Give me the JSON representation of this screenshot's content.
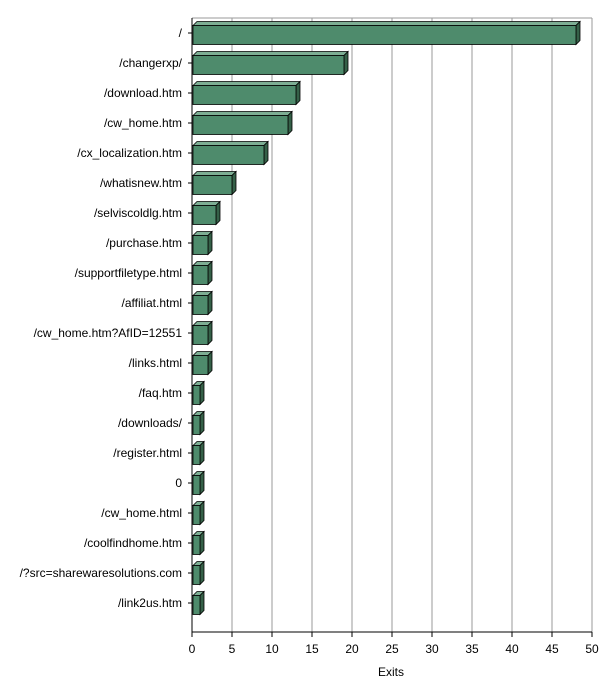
{
  "chart_data": {
    "type": "bar",
    "orientation": "horizontal",
    "style": "3d",
    "categories": [
      "/",
      "/changerxp/",
      "/download.htm",
      "/cw_home.htm",
      "/cx_localization.htm",
      "/whatisnew.htm",
      "/selviscoldlg.htm",
      "/purchase.htm",
      "/supportfiletype.html",
      "/affiliat.html",
      "/cw_home.htm?AfID=12551",
      "/links.html",
      "/faq.htm",
      "/downloads/",
      "/register.html",
      "0",
      "/cw_home.html",
      "/coolfindhome.htm",
      "/?src=sharewaresolutions.com",
      "/link2us.htm"
    ],
    "values": [
      48,
      19,
      13,
      12,
      9,
      5,
      3,
      2,
      2,
      2,
      2,
      2,
      1,
      1,
      1,
      1,
      1,
      1,
      1,
      1
    ],
    "xlabel": "Exits",
    "xlim": [
      0,
      50
    ],
    "xticks": [
      0,
      5,
      10,
      15,
      20,
      25,
      30,
      35,
      40,
      45,
      50
    ],
    "grid": true,
    "bar_color": "#4e8b6c",
    "bar_top_color": "#7dae94",
    "bar_side_color": "#356048"
  }
}
